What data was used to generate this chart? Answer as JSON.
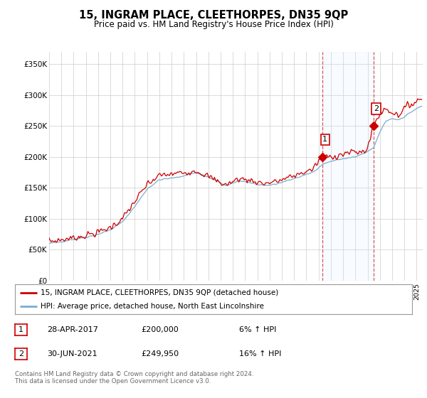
{
  "title": "15, INGRAM PLACE, CLEETHORPES, DN35 9QP",
  "subtitle": "Price paid vs. HM Land Registry's House Price Index (HPI)",
  "ylabel_ticks": [
    "£0",
    "£50K",
    "£100K",
    "£150K",
    "£200K",
    "£250K",
    "£300K",
    "£350K"
  ],
  "ytick_vals": [
    0,
    50000,
    100000,
    150000,
    200000,
    250000,
    300000,
    350000
  ],
  "ylim": [
    0,
    370000
  ],
  "xlim_start": 1995.0,
  "xlim_end": 2025.5,
  "sale1_x": 2017.33,
  "sale1_y": 200000,
  "sale1_label": "1",
  "sale2_x": 2021.5,
  "sale2_y": 249950,
  "sale2_label": "2",
  "red_line_color": "#cc0000",
  "blue_line_color": "#7aadcf",
  "shade_color": "#ddeeff",
  "grid_color": "#cccccc",
  "bg_color": "#ffffff",
  "box_color_sale": "#cc0000",
  "legend1_text": "15, INGRAM PLACE, CLEETHORPES, DN35 9QP (detached house)",
  "legend2_text": "HPI: Average price, detached house, North East Lincolnshire",
  "ann1_num": "1",
  "ann1_date": "28-APR-2017",
  "ann1_price": "£200,000",
  "ann1_hpi": "6% ↑ HPI",
  "ann2_num": "2",
  "ann2_date": "30-JUN-2021",
  "ann2_price": "£249,950",
  "ann2_hpi": "16% ↑ HPI",
  "footer": "Contains HM Land Registry data © Crown copyright and database right 2024.\nThis data is licensed under the Open Government Licence v3.0."
}
